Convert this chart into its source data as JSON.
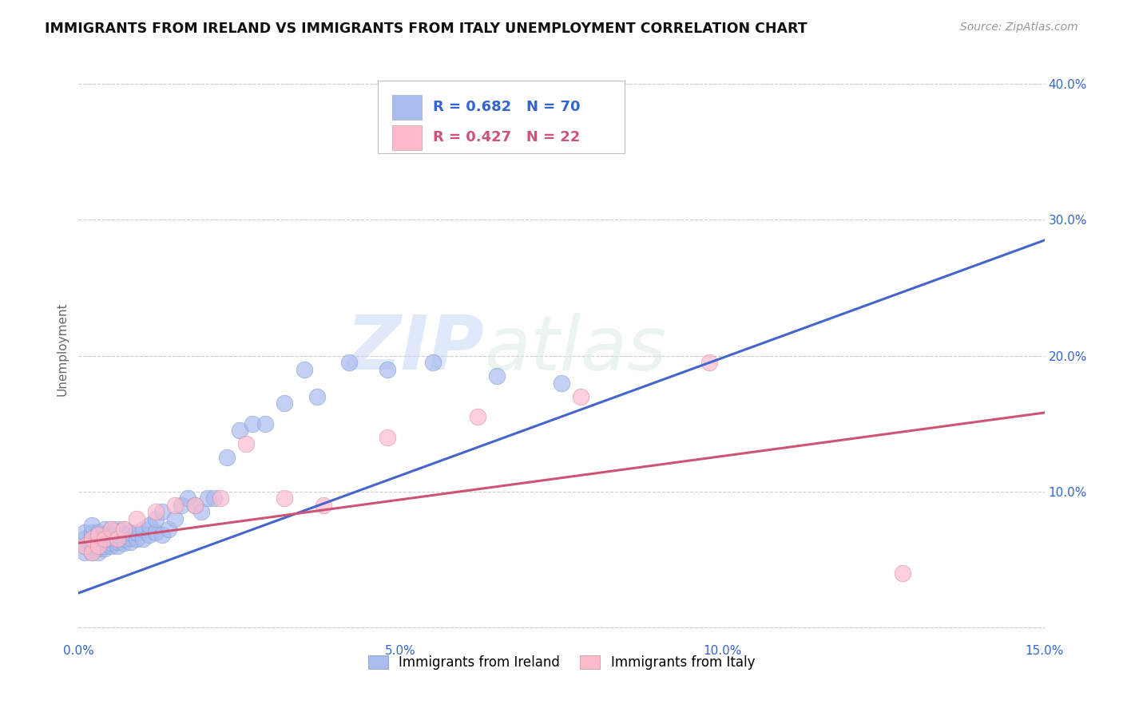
{
  "title": "IMMIGRANTS FROM IRELAND VS IMMIGRANTS FROM ITALY UNEMPLOYMENT CORRELATION CHART",
  "source": "Source: ZipAtlas.com",
  "ylabel": "Unemployment",
  "xlim": [
    0.0,
    0.15
  ],
  "ylim": [
    -0.01,
    0.42
  ],
  "background_color": "#ffffff",
  "grid_color": "#cccccc",
  "watermark_zip": "ZIP",
  "watermark_atlas": "atlas",
  "ireland_color": "#aabbee",
  "ireland_edge_color": "#7799cc",
  "ireland_line_color": "#4466cc",
  "italy_color": "#ffbbcc",
  "italy_edge_color": "#cc8899",
  "italy_line_color": "#cc5577",
  "ireland_R": 0.682,
  "ireland_N": 70,
  "italy_R": 0.427,
  "italy_N": 22,
  "ireland_scatter_x": [
    0.001,
    0.001,
    0.001,
    0.001,
    0.002,
    0.002,
    0.002,
    0.002,
    0.002,
    0.002,
    0.003,
    0.003,
    0.003,
    0.003,
    0.003,
    0.003,
    0.003,
    0.004,
    0.004,
    0.004,
    0.004,
    0.004,
    0.004,
    0.005,
    0.005,
    0.005,
    0.005,
    0.005,
    0.006,
    0.006,
    0.006,
    0.006,
    0.006,
    0.007,
    0.007,
    0.007,
    0.007,
    0.008,
    0.008,
    0.008,
    0.009,
    0.009,
    0.01,
    0.01,
    0.011,
    0.011,
    0.012,
    0.012,
    0.013,
    0.013,
    0.014,
    0.015,
    0.016,
    0.017,
    0.018,
    0.019,
    0.02,
    0.021,
    0.023,
    0.025,
    0.027,
    0.029,
    0.032,
    0.035,
    0.037,
    0.042,
    0.048,
    0.055,
    0.065,
    0.075
  ],
  "ireland_scatter_y": [
    0.055,
    0.06,
    0.065,
    0.07,
    0.055,
    0.06,
    0.065,
    0.068,
    0.07,
    0.075,
    0.055,
    0.058,
    0.06,
    0.063,
    0.065,
    0.068,
    0.07,
    0.058,
    0.06,
    0.063,
    0.065,
    0.068,
    0.072,
    0.06,
    0.062,
    0.065,
    0.068,
    0.072,
    0.06,
    0.063,
    0.065,
    0.068,
    0.072,
    0.062,
    0.065,
    0.068,
    0.072,
    0.063,
    0.066,
    0.07,
    0.065,
    0.07,
    0.065,
    0.072,
    0.068,
    0.075,
    0.07,
    0.08,
    0.068,
    0.085,
    0.072,
    0.08,
    0.09,
    0.095,
    0.09,
    0.085,
    0.095,
    0.095,
    0.125,
    0.145,
    0.15,
    0.15,
    0.165,
    0.19,
    0.17,
    0.195,
    0.19,
    0.195,
    0.185,
    0.18
  ],
  "italy_scatter_x": [
    0.001,
    0.002,
    0.002,
    0.003,
    0.003,
    0.004,
    0.005,
    0.006,
    0.007,
    0.009,
    0.012,
    0.015,
    0.018,
    0.022,
    0.026,
    0.032,
    0.038,
    0.048,
    0.062,
    0.078,
    0.098,
    0.128
  ],
  "italy_scatter_y": [
    0.06,
    0.055,
    0.065,
    0.06,
    0.068,
    0.065,
    0.072,
    0.065,
    0.072,
    0.08,
    0.085,
    0.09,
    0.09,
    0.095,
    0.135,
    0.095,
    0.09,
    0.14,
    0.155,
    0.17,
    0.195,
    0.04
  ],
  "ireland_trend_x": [
    -0.003,
    0.15
  ],
  "ireland_trend_y": [
    0.02,
    0.285
  ],
  "italy_trend_x": [
    0.0,
    0.15
  ],
  "italy_trend_y": [
    0.062,
    0.158
  ],
  "xtick_vals": [
    0.0,
    0.05,
    0.1,
    0.15
  ],
  "xtick_labels": [
    "0.0%",
    "5.0%",
    "10.0%",
    "15.0%"
  ],
  "ytick_vals": [
    0.0,
    0.1,
    0.2,
    0.3,
    0.4
  ],
  "ytick_labels": [
    "",
    "10.0%",
    "20.0%",
    "30.0%",
    "40.0%"
  ]
}
